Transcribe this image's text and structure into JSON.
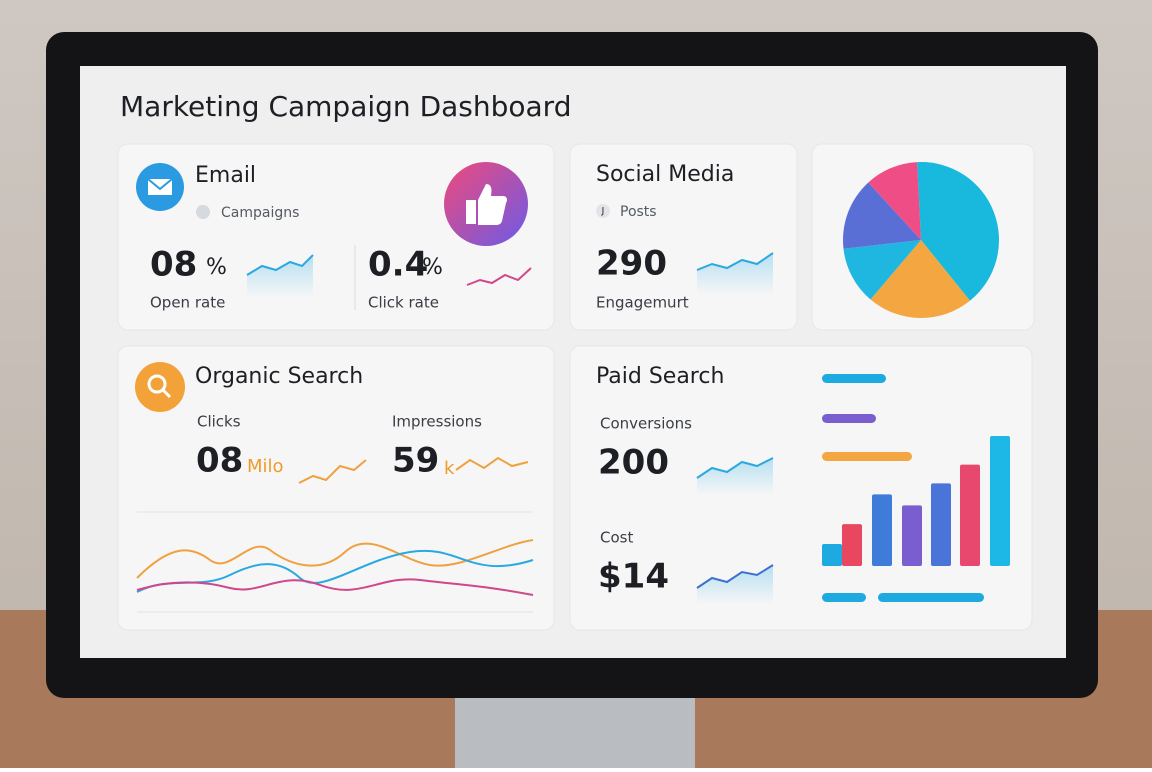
{
  "header": {
    "title": "Marketing Campaign Dashboard"
  },
  "cards": {
    "email": {
      "title": "Email",
      "subtitle": "Campaigns",
      "metrics": [
        {
          "value": "08",
          "unit": "%",
          "label": "Open rate"
        },
        {
          "value": "0.4",
          "unit": "%",
          "label": "Click rate"
        }
      ]
    },
    "social": {
      "title": "Social Media",
      "icon": "J",
      "subtitle": "Posts",
      "value": "290",
      "label": "Engagemurt"
    },
    "organic": {
      "title": "Organic Search",
      "metrics": [
        {
          "label": "Clicks",
          "value": "08",
          "unit": "Milo"
        },
        {
          "label": "Impressions",
          "value": "59",
          "unit": "k"
        }
      ]
    },
    "paid": {
      "title": "Paid Search",
      "metrics": [
        {
          "label": "Conversions",
          "value": "200"
        },
        {
          "label": "Cost",
          "value": "$14"
        }
      ]
    }
  },
  "pie": {
    "values": [
      40,
      22,
      12,
      15,
      11
    ],
    "colors": [
      "#18b9dc",
      "#f4a640",
      "#1fb7e0",
      "#5a6fd6",
      "#ee4d86"
    ]
  },
  "bars": {
    "values": [
      20,
      38,
      65,
      55,
      75,
      92,
      118
    ],
    "colors": [
      "#1ea9e0",
      "#e8475f",
      "#3f7bd8",
      "#7a5ed0",
      "#4a74d8",
      "#e8486e",
      "#1db8e6"
    ]
  }
}
